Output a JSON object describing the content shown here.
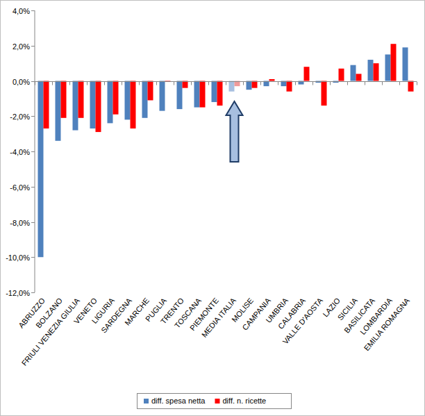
{
  "chart_data": {
    "type": "bar",
    "categories": [
      "ABRUZZO",
      "BOLZANO",
      "FRIULI VENEZIA GIULIA",
      "VENETO",
      "LIGURIA",
      "SARDEGNA",
      "MARCHE",
      "PUGLIA",
      "TRENTO",
      "TOSCANA",
      "PIEMONTE",
      "MEDIA ITALIA",
      "MOLISE",
      "CAMPANIA",
      "UMBRIA",
      "CALABRIA",
      "VALLE D'AOSTA",
      "LAZIO",
      "SICILIA",
      "BASILICATA",
      "LOMBARDIA",
      "EMILIA ROMAGNA"
    ],
    "series": [
      {
        "name": "diff. spesa netta",
        "color": "#4f81bd",
        "colors": [
          "#4f81bd",
          "#4f81bd",
          "#4f81bd",
          "#4f81bd",
          "#4f81bd",
          "#4f81bd",
          "#4f81bd",
          "#4f81bd",
          "#4f81bd",
          "#4f81bd",
          "#4f81bd",
          "#a7bfe0",
          "#4f81bd",
          "#4f81bd",
          "#4f81bd",
          "#4f81bd",
          "#4f81bd",
          "#4f81bd",
          "#4f81bd",
          "#4f81bd",
          "#4f81bd",
          "#4f81bd"
        ],
        "values": [
          -10.0,
          -3.4,
          -2.8,
          -2.7,
          -2.4,
          -2.2,
          -2.1,
          -1.7,
          -1.6,
          -1.5,
          -1.2,
          -0.6,
          -0.5,
          -0.3,
          -0.3,
          -0.2,
          -0.1,
          -0.1,
          0.9,
          1.2,
          1.5,
          1.9
        ]
      },
      {
        "name": "diff. n. ricette",
        "color": "#ff0000",
        "colors": [
          "#ff0000",
          "#ff0000",
          "#ff0000",
          "#ff0000",
          "#ff0000",
          "#ff0000",
          "#ff0000",
          "#ff0000",
          "#ff0000",
          "#ff0000",
          "#ff0000",
          "#f09a9a",
          "#ff0000",
          "#ff0000",
          "#ff0000",
          "#ff0000",
          "#ff0000",
          "#ff0000",
          "#ff0000",
          "#ff0000",
          "#ff0000",
          "#ff0000"
        ],
        "values": [
          -2.7,
          -2.1,
          -2.1,
          -2.9,
          -1.9,
          -2.7,
          -1.1,
          0.0,
          -0.4,
          -1.5,
          -1.4,
          -0.3,
          -0.4,
          0.1,
          -0.6,
          0.8,
          -1.4,
          0.7,
          0.4,
          1.0,
          2.1,
          -0.6
        ]
      }
    ],
    "ylim": [
      -12,
      4
    ],
    "yticks": [
      {
        "value": -12,
        "label": "-12,0%"
      },
      {
        "value": -10,
        "label": "-10,0%"
      },
      {
        "value": -8,
        "label": "-8,0%"
      },
      {
        "value": -6,
        "label": "-6,0%"
      },
      {
        "value": -4,
        "label": "-4,0%"
      },
      {
        "value": -2,
        "label": "-2,0%"
      },
      {
        "value": 0,
        "label": "0,0%"
      },
      {
        "value": 2,
        "label": "2,0%"
      },
      {
        "value": 4,
        "label": "4,0%"
      }
    ],
    "grid": false,
    "legend": "bottom"
  }
}
